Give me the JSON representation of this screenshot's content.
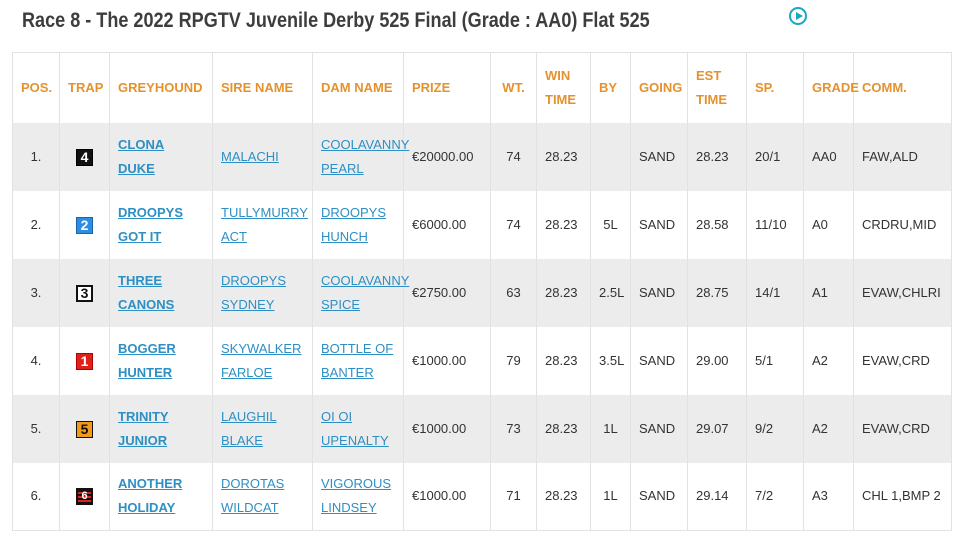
{
  "race": {
    "title": "Race 8 - The 2022 RPGTV Juvenile Derby 525 Final   (Grade : AA0) Flat 525"
  },
  "table": {
    "headers": {
      "pos": "POS.",
      "trap": "TRAP",
      "greyhound": "GREYHOUND",
      "sire": "SIRE NAME",
      "dam": "DAM NAME",
      "prize": "PRIZE",
      "wt": "WT.",
      "win_time_1": "WIN",
      "win_time_2": "TIME",
      "by": "BY",
      "going": "GOING",
      "est_time_1": "EST",
      "est_time_2": "TIME",
      "sp": "SP.",
      "grade": "GRADE",
      "comm": "COMM."
    },
    "rows": [
      {
        "pos": "1.",
        "trap": "4",
        "greyhound": "CLONA DUKE",
        "sire": "MALACHI",
        "dam": "COOLAVANNY PEARL",
        "prize": "€20000.00",
        "wt": "74",
        "win_time": "28.23",
        "by": "",
        "going": "SAND",
        "est_time": "28.23",
        "sp": "20/1",
        "grade": "AA0",
        "comm": "FAW,ALD"
      },
      {
        "pos": "2.",
        "trap": "2",
        "greyhound": "DROOPYS GOT IT",
        "sire": "TULLYMURRY ACT",
        "dam": "DROOPYS HUNCH",
        "prize": "€6000.00",
        "wt": "74",
        "win_time": "28.23",
        "by": "5L",
        "going": "SAND",
        "est_time": "28.58",
        "sp": "11/10",
        "grade": "A0",
        "comm": "CRDRU,MID"
      },
      {
        "pos": "3.",
        "trap": "3",
        "greyhound": "THREE CANONS",
        "sire": "DROOPYS SYDNEY",
        "dam": "COOLAVANNY SPICE",
        "prize": "€2750.00",
        "wt": "63",
        "win_time": "28.23",
        "by": "2.5L",
        "going": "SAND",
        "est_time": "28.75",
        "sp": "14/1",
        "grade": "A1",
        "comm": "EVAW,CHLRI"
      },
      {
        "pos": "4.",
        "trap": "1",
        "greyhound": "BOGGER HUNTER",
        "sire": "SKYWALKER FARLOE",
        "dam": "BOTTLE OF BANTER",
        "prize": "€1000.00",
        "wt": "79",
        "win_time": "28.23",
        "by": "3.5L",
        "going": "SAND",
        "est_time": "29.00",
        "sp": "5/1",
        "grade": "A2",
        "comm": "EVAW,CRD"
      },
      {
        "pos": "5.",
        "trap": "5",
        "greyhound": "TRINITY JUNIOR",
        "sire": "LAUGHIL BLAKE",
        "dam": "OI OI UPENALTY",
        "prize": "€1000.00",
        "wt": "73",
        "win_time": "28.23",
        "by": "1L",
        "going": "SAND",
        "est_time": "29.07",
        "sp": "9/2",
        "grade": "A2",
        "comm": "EVAW,CRD"
      },
      {
        "pos": "6.",
        "trap": "6",
        "greyhound": "ANOTHER HOLIDAY",
        "sire": "DOROTAS WILDCAT",
        "dam": "VIGOROUS LINDSEY",
        "prize": "€1000.00",
        "wt": "71",
        "win_time": "28.23",
        "by": "1L",
        "going": "SAND",
        "est_time": "29.14",
        "sp": "7/2",
        "grade": "A3",
        "comm": "CHL 1,BMP 2"
      }
    ]
  },
  "icons": {
    "play": "play-circle-icon"
  },
  "colors": {
    "header_text": "#e5922c",
    "link": "#2d8fc4",
    "accent": "#1aa6c7",
    "row_shade": "#ececec"
  }
}
